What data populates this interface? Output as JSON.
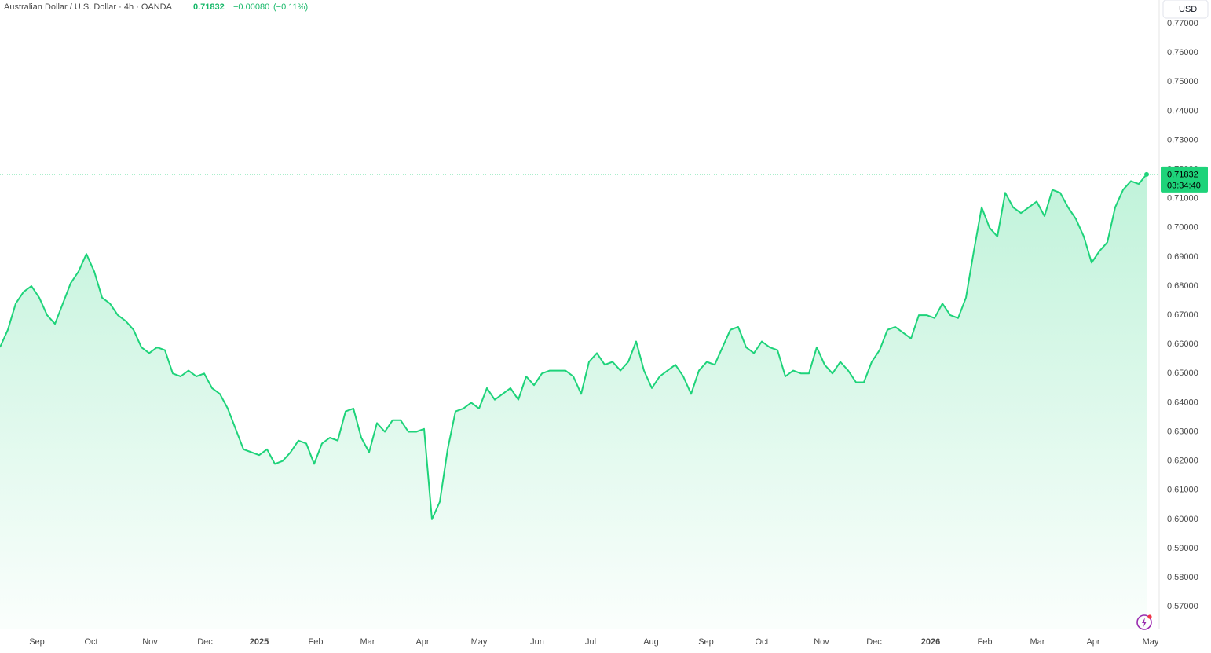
{
  "chart_data": {
    "type": "area",
    "title": "Australian Dollar / U.S. Dollar · 4h · OANDA",
    "change": "−0.00080",
    "change_pct": "(−0.11%)",
    "currency": "USD",
    "countdown": "03:34:40",
    "color": "#1ed37a",
    "values": [
      0.659,
      0.665,
      0.674,
      0.678,
      0.68,
      0.676,
      0.67,
      0.667,
      0.674,
      0.681,
      0.685,
      0.691,
      0.685,
      0.676,
      0.674,
      0.67,
      0.668,
      0.665,
      0.659,
      0.657,
      0.659,
      0.658,
      0.65,
      0.649,
      0.651,
      0.649,
      0.65,
      0.645,
      0.643,
      0.638,
      0.631,
      0.624,
      0.623,
      0.622,
      0.624,
      0.619,
      0.62,
      0.623,
      0.627,
      0.626,
      0.619,
      0.626,
      0.628,
      0.627,
      0.637,
      0.638,
      0.628,
      0.623,
      0.633,
      0.63,
      0.634,
      0.634,
      0.63,
      0.63,
      0.631,
      0.6,
      0.606,
      0.624,
      0.637,
      0.638,
      0.64,
      0.638,
      0.645,
      0.641,
      0.643,
      0.645,
      0.641,
      0.649,
      0.646,
      0.65,
      0.651,
      0.651,
      0.651,
      0.649,
      0.643,
      0.654,
      0.657,
      0.653,
      0.654,
      0.651,
      0.654,
      0.661,
      0.651,
      0.645,
      0.649,
      0.651,
      0.653,
      0.649,
      0.643,
      0.651,
      0.654,
      0.653,
      0.659,
      0.665,
      0.666,
      0.659,
      0.657,
      0.661,
      0.659,
      0.658,
      0.649,
      0.651,
      0.65,
      0.65,
      0.659,
      0.653,
      0.65,
      0.654,
      0.651,
      0.647,
      0.647,
      0.654,
      0.658,
      0.665,
      0.666,
      0.664,
      0.662,
      0.67,
      0.67,
      0.669,
      0.674,
      0.67,
      0.669,
      0.676,
      0.692,
      0.707,
      0.7,
      0.697,
      0.712,
      0.707,
      0.705,
      0.707,
      0.709,
      0.704,
      0.713,
      0.712,
      0.707,
      0.703,
      0.697,
      0.688,
      0.692,
      0.695,
      0.707,
      0.713,
      0.716,
      0.715,
      0.71832
    ],
    "xlim": [
      0,
      147.5
    ],
    "xticks": [
      {
        "value": 4.7,
        "label": "Sep"
      },
      {
        "value": 11.6,
        "label": "Oct"
      },
      {
        "value": 19.1,
        "label": "Nov"
      },
      {
        "value": 26.1,
        "label": "Dec"
      },
      {
        "value": 33.0,
        "label": "2025"
      },
      {
        "value": 40.2,
        "label": "Feb"
      },
      {
        "value": 46.8,
        "label": "Mar"
      },
      {
        "value": 53.8,
        "label": "Apr"
      },
      {
        "value": 61.0,
        "label": "May"
      },
      {
        "value": 68.4,
        "label": "Jun"
      },
      {
        "value": 75.2,
        "label": "Jul"
      },
      {
        "value": 82.9,
        "label": "Aug"
      },
      {
        "value": 89.9,
        "label": "Sep"
      },
      {
        "value": 97.0,
        "label": "Oct"
      },
      {
        "value": 104.6,
        "label": "Nov"
      },
      {
        "value": 111.3,
        "label": "Dec"
      },
      {
        "value": 118.5,
        "label": "2026"
      },
      {
        "value": 125.4,
        "label": "Feb"
      },
      {
        "value": 132.1,
        "label": "Mar"
      },
      {
        "value": 139.2,
        "label": "Apr"
      },
      {
        "value": 146.5,
        "label": "May"
      }
    ],
    "ylim": [
      0.5625,
      0.7781
    ],
    "yticks": [
      {
        "value": 0.57,
        "label": "0.57000"
      },
      {
        "value": 0.58,
        "label": "0.58000"
      },
      {
        "value": 0.59,
        "label": "0.59000"
      },
      {
        "value": 0.6,
        "label": "0.60000"
      },
      {
        "value": 0.61,
        "label": "0.61000"
      },
      {
        "value": 0.62,
        "label": "0.62000"
      },
      {
        "value": 0.63,
        "label": "0.63000"
      },
      {
        "value": 0.64,
        "label": "0.64000"
      },
      {
        "value": 0.65,
        "label": "0.65000"
      },
      {
        "value": 0.66,
        "label": "0.66000"
      },
      {
        "value": 0.67,
        "label": "0.67000"
      },
      {
        "value": 0.68,
        "label": "0.68000"
      },
      {
        "value": 0.69,
        "label": "0.69000"
      },
      {
        "value": 0.7,
        "label": "0.70000"
      },
      {
        "value": 0.71,
        "label": "0.71000"
      },
      {
        "value": 0.72,
        "label": "0.72000"
      },
      {
        "value": 0.73,
        "label": "0.73000"
      },
      {
        "value": 0.74,
        "label": "0.74000"
      },
      {
        "value": 0.75,
        "label": "0.75000"
      },
      {
        "value": 0.76,
        "label": "0.76000"
      },
      {
        "value": 0.77,
        "label": "0.77000"
      }
    ],
    "grid": false
  }
}
